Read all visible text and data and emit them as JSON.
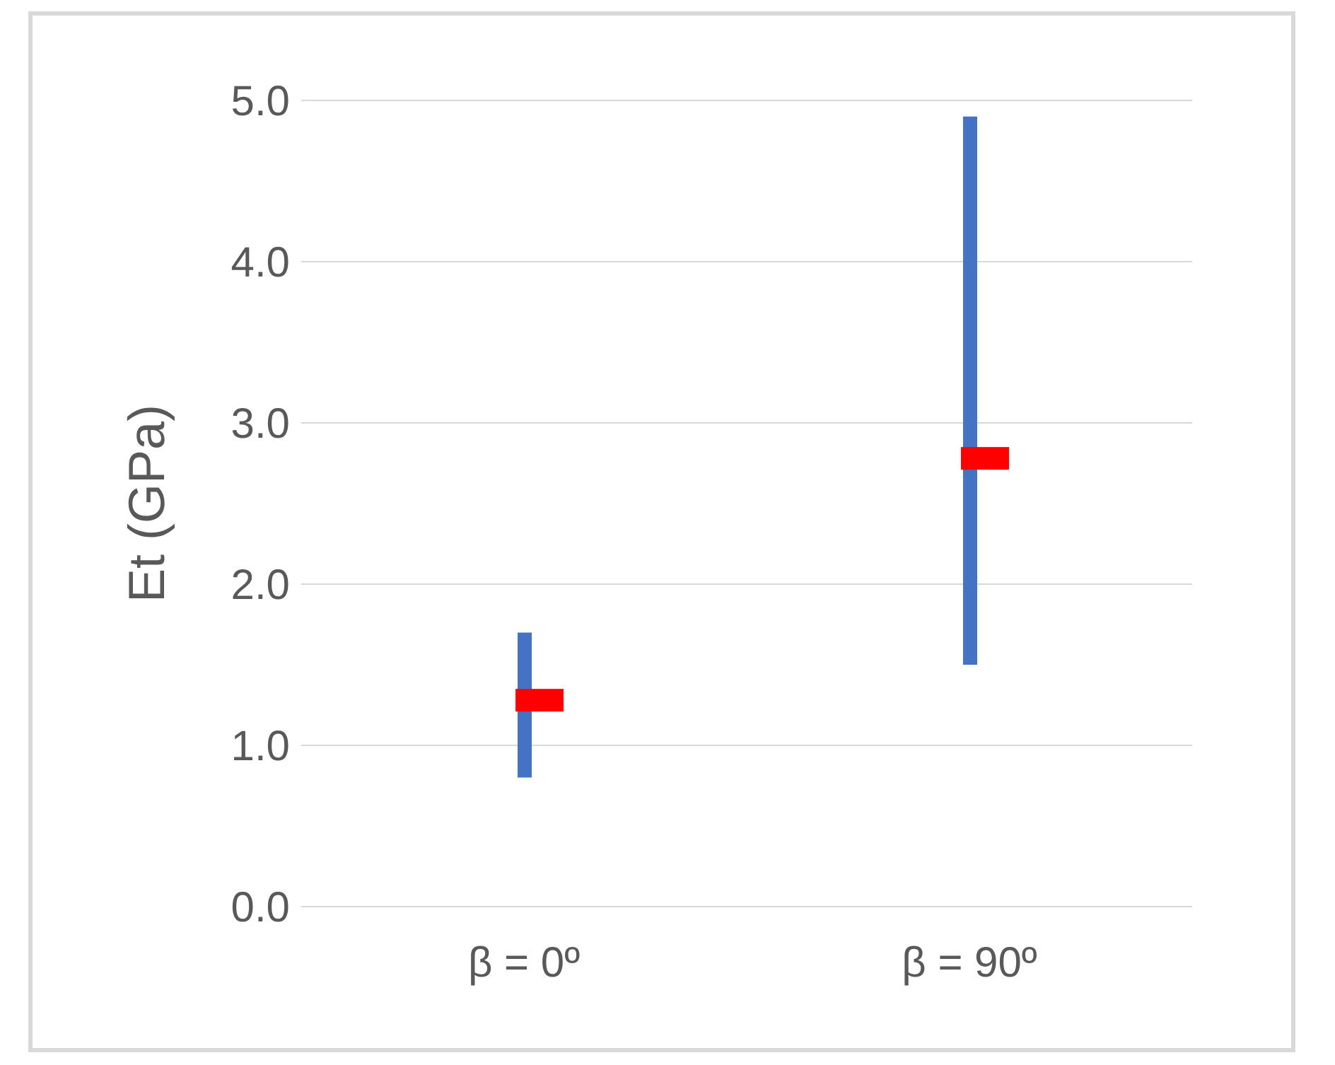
{
  "chart_data": {
    "type": "bar",
    "ylabel": "Et (GPa)",
    "categories": [
      "β = 0º",
      "β = 90º"
    ],
    "series": [
      {
        "color": "#4472c4",
        "base": [
          0.8,
          1.5
        ],
        "values": [
          0.9,
          3.4
        ]
      },
      {
        "type": "scatter",
        "color": "#ff0000",
        "marker": "square",
        "values": [
          1.28,
          2.78
        ]
      }
    ],
    "ylim": [
      0,
      5
    ],
    "yticks": [
      {
        "value": 0,
        "label": "0.0"
      },
      {
        "value": 1,
        "label": "1.0"
      },
      {
        "value": 2,
        "label": "2.0"
      },
      {
        "value": 3,
        "label": "3.0"
      },
      {
        "value": 4,
        "label": "4.0"
      },
      {
        "value": 5,
        "label": "5.0"
      }
    ],
    "grid": "y"
  }
}
